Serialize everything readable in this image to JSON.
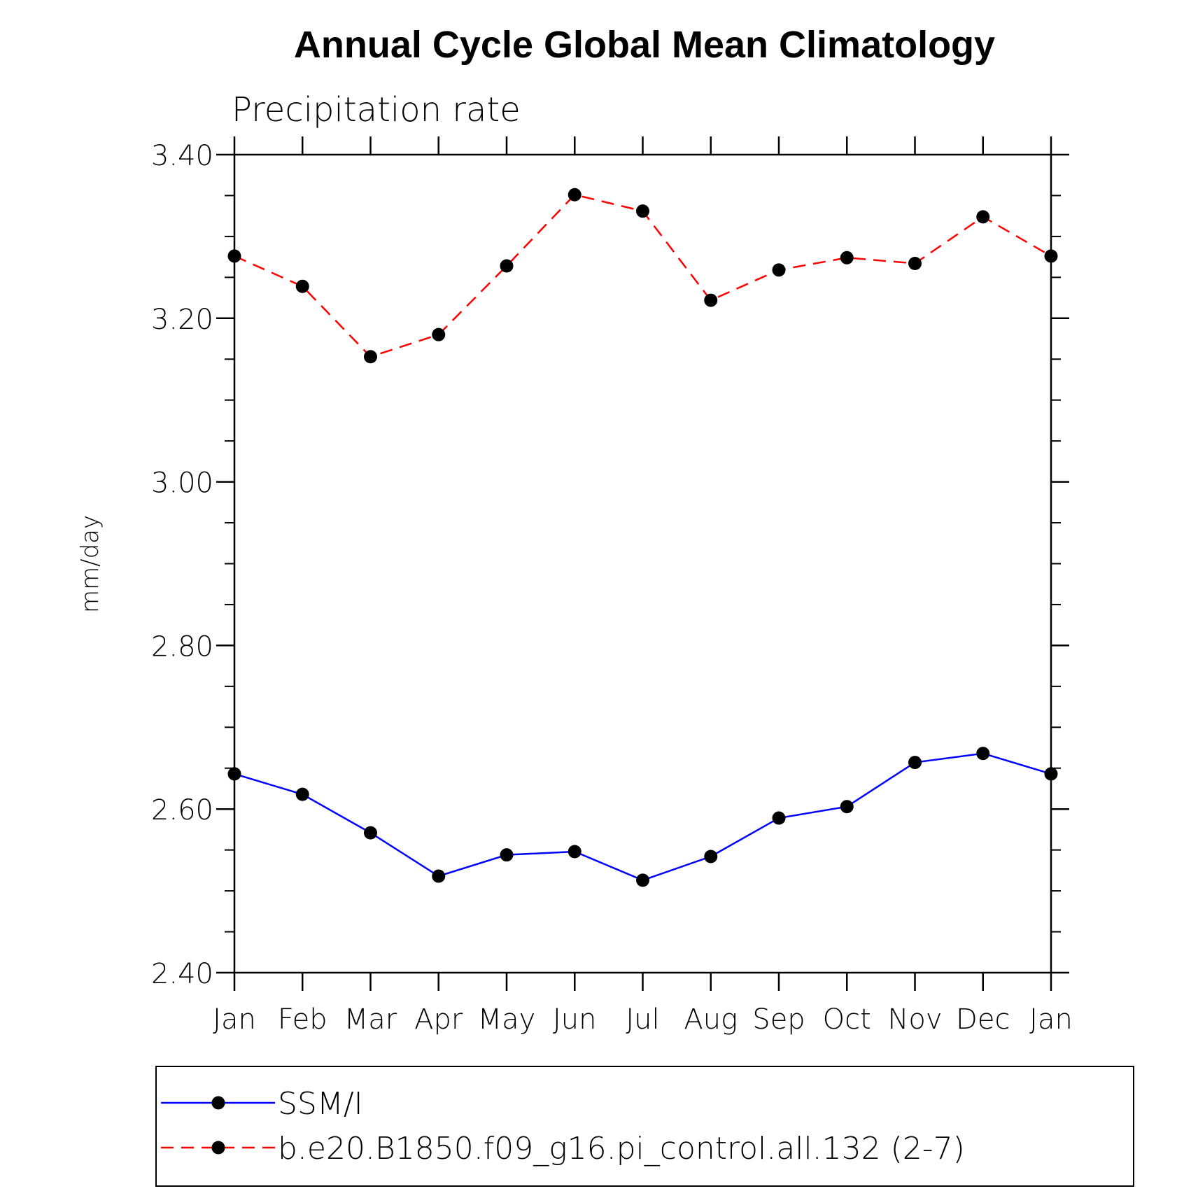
{
  "chart_data": {
    "type": "line",
    "title": "Annual Cycle Global Mean Climatology",
    "subtitle": "Precipitation rate",
    "ylabel": "mm/day",
    "xlabel": "",
    "categories": [
      "Jan",
      "Feb",
      "Mar",
      "Apr",
      "May",
      "Jun",
      "Jul",
      "Aug",
      "Sep",
      "Oct",
      "Nov",
      "Dec",
      "Jan"
    ],
    "ylim": [
      2.4,
      3.4
    ],
    "yticks": [
      "2.40",
      "2.60",
      "2.80",
      "3.00",
      "3.20",
      "3.40"
    ],
    "y_minor_step": 0.05,
    "grid": false,
    "legend_position": "bottom",
    "series": [
      {
        "name": "SSM/I",
        "color": "#0000ff",
        "dash": "solid",
        "marker": "filled-circle",
        "values": [
          2.643,
          2.618,
          2.571,
          2.518,
          2.544,
          2.548,
          2.513,
          2.542,
          2.589,
          2.603,
          2.657,
          2.668,
          2.643
        ]
      },
      {
        "name": "b.e20.B1850.f09_g16.pi_control.all.132 (2-7)",
        "color": "#ff0000",
        "dash": "dashed",
        "marker": "filled-circle",
        "values": [
          3.276,
          3.239,
          3.153,
          3.18,
          3.264,
          3.351,
          3.331,
          3.222,
          3.259,
          3.274,
          3.267,
          3.324,
          3.276
        ]
      }
    ]
  }
}
